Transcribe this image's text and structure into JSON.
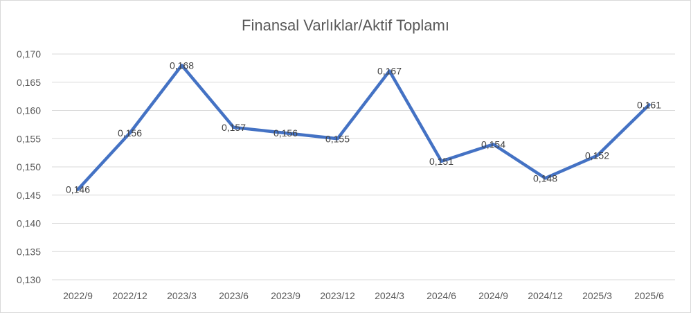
{
  "chart_data": {
    "type": "line",
    "title": "Finansal Varlıklar/Aktif Toplamı",
    "xlabel": "",
    "ylabel": "",
    "categories": [
      "2022/9",
      "2022/12",
      "2023/3",
      "2023/6",
      "2023/9",
      "2023/12",
      "2024/3",
      "2024/6",
      "2024/9",
      "2024/12",
      "2025/3",
      "2025/6"
    ],
    "series": [
      {
        "values": [
          0.146,
          0.156,
          0.168,
          0.157,
          0.156,
          0.155,
          0.167,
          0.151,
          0.154,
          0.148,
          0.152,
          0.161
        ],
        "labels": [
          "0,146",
          "0,156",
          "0,168",
          "0,157",
          "0,156",
          "0,155",
          "0,167",
          "0,151",
          "0,154",
          "0,148",
          "0,152",
          "0,161"
        ],
        "color": "#4472c4"
      }
    ],
    "ylim": [
      0.13,
      0.17
    ],
    "yticks": [
      "0,130",
      "0,135",
      "0,140",
      "0,145",
      "0,150",
      "0,155",
      "0,160",
      "0,165",
      "0,170"
    ],
    "grid": true,
    "legend": "none"
  }
}
